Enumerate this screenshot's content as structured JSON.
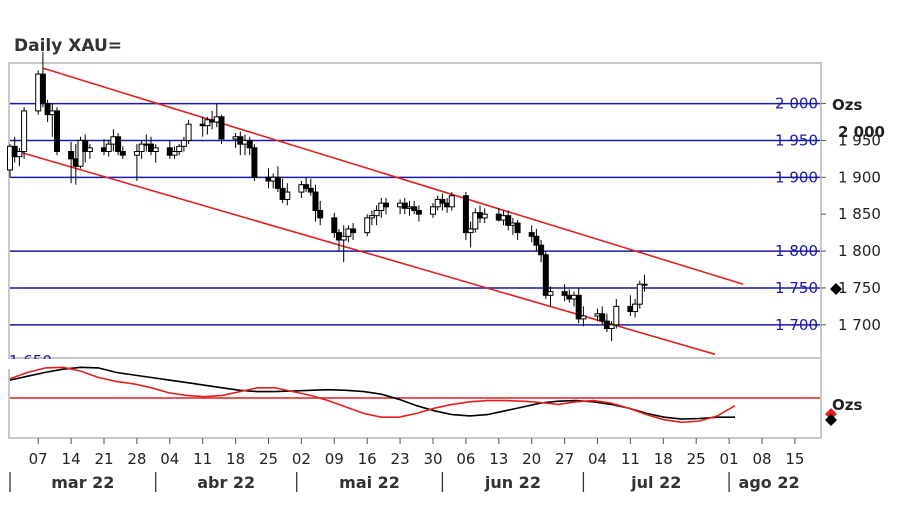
{
  "chart_data": {
    "type": "candlestick",
    "title": "Daily XAU=",
    "unit_label": "Ozs",
    "indicator_unit_label": "Ozs",
    "current_price_label": "2 000",
    "y_ticks": [
      {
        "value": 1700,
        "label": "1 700"
      },
      {
        "value": 1750,
        "label": "1 750"
      },
      {
        "value": 1800,
        "label": "1 800"
      },
      {
        "value": 1850,
        "label": "1 850"
      },
      {
        "value": 1900,
        "label": "1 900"
      },
      {
        "value": 1950,
        "label": "1 950"
      },
      {
        "value": 2000,
        "label": "2 000"
      }
    ],
    "ylim": [
      1655,
      2055
    ],
    "partial_label": "1 650",
    "levels": [
      {
        "value": 2000,
        "label": "2 000"
      },
      {
        "value": 1950,
        "label": "1 950"
      },
      {
        "value": 1900,
        "label": "1 900"
      },
      {
        "value": 1800,
        "label": "1 800"
      },
      {
        "value": 1750,
        "label": "1 750"
      },
      {
        "value": 1700,
        "label": "1 700"
      }
    ],
    "trend_channel": {
      "upper": {
        "start": {
          "date": "2022-03-08",
          "value": 2048
        },
        "end": {
          "date": "2022-08-04",
          "value": 1755
        }
      },
      "lower": {
        "start": {
          "date": "2022-03-01",
          "value": 1938
        },
        "end": {
          "date": "2022-07-29",
          "value": 1660
        }
      }
    },
    "x_tick_labels": [
      "07",
      "14",
      "21",
      "28",
      "04",
      "11",
      "18",
      "25",
      "02",
      "09",
      "16",
      "23",
      "30",
      "06",
      "13",
      "20",
      "27",
      "04",
      "11",
      "18",
      "25",
      "01",
      "08",
      "15"
    ],
    "x_tick_dates": [
      "2022-03-07",
      "2022-03-14",
      "2022-03-21",
      "2022-03-28",
      "2022-04-04",
      "2022-04-11",
      "2022-04-18",
      "2022-04-25",
      "2022-05-02",
      "2022-05-09",
      "2022-05-16",
      "2022-05-23",
      "2022-05-30",
      "2022-06-06",
      "2022-06-13",
      "2022-06-20",
      "2022-06-27",
      "2022-07-04",
      "2022-07-11",
      "2022-07-18",
      "2022-07-25",
      "2022-08-01",
      "2022-08-08",
      "2022-08-15"
    ],
    "months": [
      {
        "label": "mar 22",
        "start": "2022-03-01"
      },
      {
        "label": "abr 22",
        "start": "2022-04-01"
      },
      {
        "label": "mai 22",
        "start": "2022-05-01"
      },
      {
        "label": "jun 22",
        "start": "2022-06-01"
      },
      {
        "label": "jul 22",
        "start": "2022-07-01"
      },
      {
        "label": "ago 22",
        "start": "2022-08-01"
      }
    ],
    "candles_start": "2022-03-01",
    "candles": [
      [
        1910,
        1945,
        1900,
        1942
      ],
      [
        1942,
        1955,
        1920,
        1928
      ],
      [
        1928,
        1940,
        1915,
        1935
      ],
      [
        1935,
        1995,
        1925,
        1990
      ],
      [
        1990,
        2045,
        1985,
        2040
      ],
      [
        2040,
        2070,
        1995,
        2000
      ],
      [
        2000,
        2005,
        1975,
        1985
      ],
      [
        1985,
        2000,
        1955,
        1990
      ],
      [
        1990,
        1995,
        1930,
        1935
      ],
      [
        1935,
        1948,
        1892,
        1925
      ],
      [
        1925,
        1945,
        1890,
        1915
      ],
      [
        1915,
        1955,
        1912,
        1950
      ],
      [
        1950,
        1958,
        1920,
        1935
      ],
      [
        1935,
        1945,
        1925,
        1940
      ],
      [
        1940,
        1952,
        1930,
        1935
      ],
      [
        1935,
        1950,
        1928,
        1945
      ],
      [
        1945,
        1965,
        1935,
        1955
      ],
      [
        1955,
        1960,
        1930,
        1935
      ],
      [
        1935,
        1942,
        1925,
        1930
      ],
      [
        1930,
        1945,
        1895,
        1935
      ],
      [
        1935,
        1950,
        1925,
        1945
      ],
      [
        1945,
        1958,
        1935,
        1945
      ],
      [
        1945,
        1955,
        1930,
        1935
      ],
      [
        1935,
        1945,
        1920,
        1940
      ],
      [
        1940,
        1950,
        1925,
        1930
      ],
      [
        1930,
        1942,
        1925,
        1935
      ],
      [
        1935,
        1945,
        1930,
        1942
      ],
      [
        1942,
        1955,
        1935,
        1950
      ],
      [
        1950,
        1978,
        1945,
        1972
      ],
      [
        1972,
        1982,
        1955,
        1970
      ],
      [
        1970,
        1982,
        1958,
        1978
      ],
      [
        1978,
        1990,
        1965,
        1975
      ],
      [
        1975,
        2000,
        1968,
        1982
      ],
      [
        1982,
        1985,
        1945,
        1952
      ],
      [
        1952,
        1960,
        1940,
        1955
      ],
      [
        1955,
        1962,
        1930,
        1945
      ],
      [
        1945,
        1958,
        1930,
        1950
      ],
      [
        1950,
        1955,
        1930,
        1940
      ],
      [
        1940,
        1945,
        1895,
        1900
      ],
      [
        1900,
        1912,
        1885,
        1895
      ],
      [
        1895,
        1905,
        1885,
        1900
      ],
      [
        1900,
        1915,
        1880,
        1885
      ],
      [
        1885,
        1898,
        1865,
        1870
      ],
      [
        1870,
        1892,
        1862,
        1880
      ],
      [
        1880,
        1895,
        1872,
        1890
      ],
      [
        1890,
        1900,
        1880,
        1885
      ],
      [
        1885,
        1898,
        1875,
        1880
      ],
      [
        1880,
        1890,
        1840,
        1855
      ],
      [
        1855,
        1868,
        1835,
        1845
      ],
      [
        1845,
        1852,
        1818,
        1825
      ],
      [
        1825,
        1830,
        1800,
        1815
      ],
      [
        1815,
        1835,
        1785,
        1820
      ],
      [
        1820,
        1835,
        1812,
        1830
      ],
      [
        1830,
        1838,
        1815,
        1825
      ],
      [
        1825,
        1850,
        1820,
        1845
      ],
      [
        1845,
        1855,
        1835,
        1848
      ],
      [
        1848,
        1862,
        1835,
        1855
      ],
      [
        1855,
        1872,
        1845,
        1865
      ],
      [
        1865,
        1872,
        1850,
        1860
      ],
      [
        1860,
        1870,
        1850,
        1865
      ],
      [
        1865,
        1872,
        1850,
        1858
      ],
      [
        1858,
        1868,
        1848,
        1860
      ],
      [
        1860,
        1868,
        1850,
        1855
      ],
      [
        1855,
        1862,
        1840,
        1850
      ],
      [
        1850,
        1865,
        1845,
        1860
      ],
      [
        1860,
        1875,
        1855,
        1870
      ],
      [
        1870,
        1878,
        1855,
        1865
      ],
      [
        1865,
        1872,
        1852,
        1860
      ],
      [
        1860,
        1880,
        1855,
        1875
      ],
      [
        1875,
        1880,
        1815,
        1825
      ],
      [
        1825,
        1840,
        1805,
        1830
      ],
      [
        1830,
        1858,
        1825,
        1852
      ],
      [
        1852,
        1862,
        1838,
        1845
      ],
      [
        1845,
        1858,
        1838,
        1850
      ],
      [
        1850,
        1858,
        1840,
        1842
      ],
      [
        1842,
        1855,
        1835,
        1848
      ],
      [
        1848,
        1855,
        1828,
        1835
      ],
      [
        1835,
        1845,
        1822,
        1838
      ],
      [
        1838,
        1842,
        1815,
        1825
      ],
      [
        1825,
        1835,
        1812,
        1820
      ],
      [
        1820,
        1830,
        1800,
        1808
      ],
      [
        1808,
        1815,
        1785,
        1795
      ],
      [
        1795,
        1800,
        1735,
        1740
      ],
      [
        1740,
        1752,
        1725,
        1745
      ],
      [
        1745,
        1755,
        1732,
        1740
      ],
      [
        1740,
        1748,
        1730,
        1735
      ],
      [
        1735,
        1745,
        1725,
        1740
      ],
      [
        1740,
        1750,
        1702,
        1708
      ],
      [
        1708,
        1725,
        1698,
        1712
      ],
      [
        1712,
        1722,
        1705,
        1715
      ],
      [
        1715,
        1725,
        1700,
        1705
      ],
      [
        1705,
        1715,
        1690,
        1695
      ],
      [
        1695,
        1705,
        1678,
        1700
      ],
      [
        1700,
        1735,
        1695,
        1725
      ],
      [
        1725,
        1740,
        1712,
        1718
      ],
      [
        1718,
        1735,
        1710,
        1728
      ],
      [
        1728,
        1760,
        1722,
        1755
      ],
      [
        1755,
        1768,
        1745,
        1755
      ]
    ],
    "indicator": {
      "reference_level": 0.5,
      "series": [
        {
          "color": "#000000",
          "values": [
            0.78,
            0.84,
            0.9,
            0.95,
            0.98,
            0.97,
            0.9,
            0.86,
            0.82,
            0.78,
            0.74,
            0.7,
            0.66,
            0.62,
            0.6,
            0.6,
            0.61,
            0.62,
            0.63,
            0.62,
            0.6,
            0.56,
            0.48,
            0.38,
            0.3,
            0.24,
            0.22,
            0.24,
            0.3,
            0.36,
            0.42,
            0.45,
            0.46,
            0.44,
            0.4,
            0.34,
            0.26,
            0.2,
            0.17,
            0.18,
            0.2,
            0.2
          ]
        },
        {
          "color": "#e02020",
          "values": [
            0.8,
            0.9,
            0.97,
            0.98,
            0.92,
            0.82,
            0.76,
            0.72,
            0.66,
            0.58,
            0.54,
            0.52,
            0.54,
            0.6,
            0.66,
            0.66,
            0.6,
            0.54,
            0.46,
            0.36,
            0.26,
            0.2,
            0.2,
            0.26,
            0.34,
            0.4,
            0.44,
            0.46,
            0.46,
            0.45,
            0.43,
            0.4,
            0.44,
            0.46,
            0.42,
            0.34,
            0.24,
            0.16,
            0.12,
            0.14,
            0.22,
            0.38
          ]
        }
      ]
    },
    "colors": {
      "candle": "#000000",
      "level_line": "#1a1aa6",
      "channel_line": "#dd2222",
      "plot_border": "#c8c8c8",
      "marker_down": "#000000",
      "marker_red": "#e02020"
    }
  }
}
